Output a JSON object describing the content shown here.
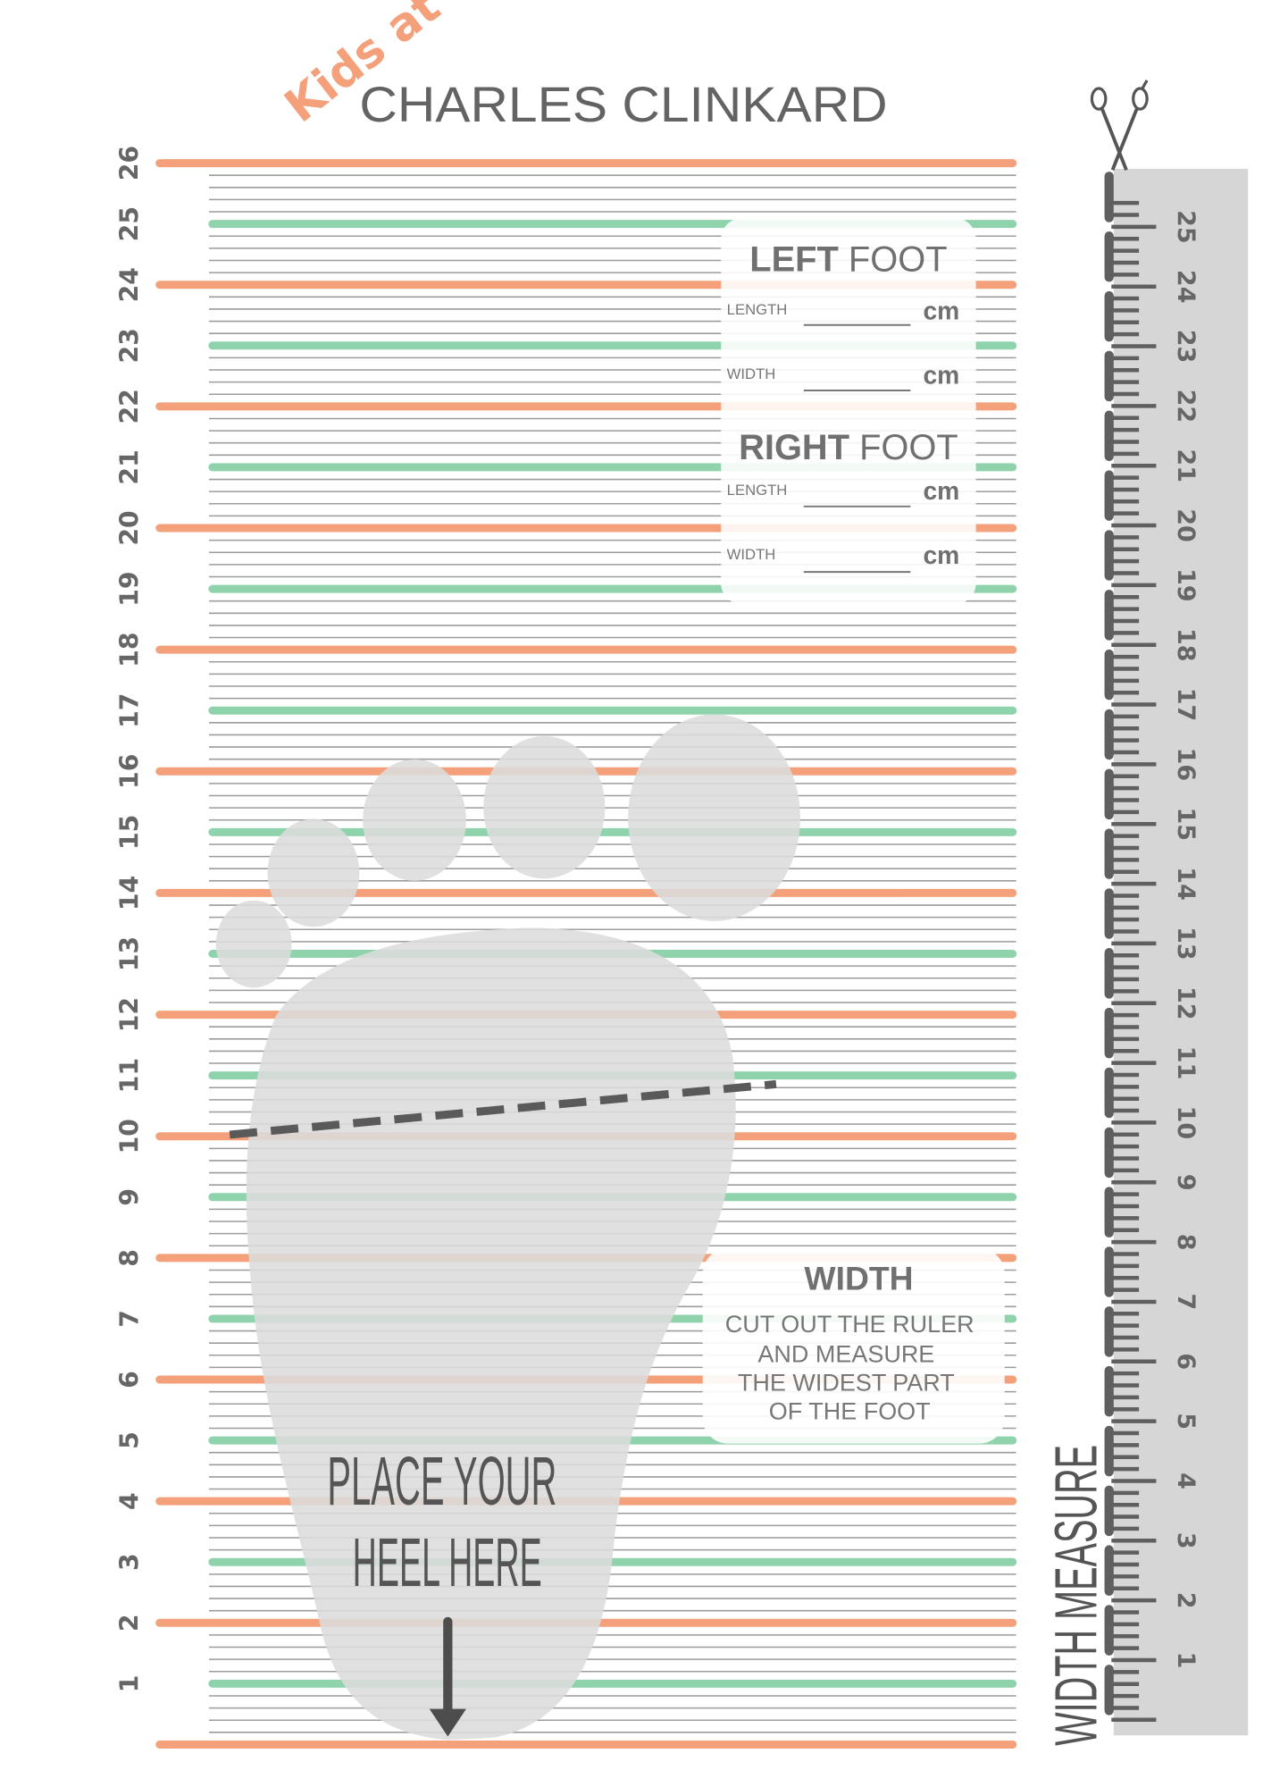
{
  "brand": {
    "kids_at": "Kids at",
    "name": "CHARLES CLINKARD"
  },
  "colors": {
    "orange": "#f4a07a",
    "green": "#8fd3ad",
    "gray_line": "#9c9c9c",
    "text": "#666666",
    "foot": "#dcdcdc",
    "ruler_bg": "#d6d6d6"
  },
  "length_scale": {
    "unit": "cm",
    "labels": [
      "1",
      "2",
      "3",
      "4",
      "5",
      "6",
      "7",
      "8",
      "9",
      "10",
      "11",
      "12",
      "13",
      "14",
      "15",
      "16",
      "17",
      "18",
      "19",
      "20",
      "21",
      "22",
      "23",
      "24",
      "25",
      "26"
    ]
  },
  "record_card": {
    "left_title_bold": "LEFT",
    "left_title_light": "FOOT",
    "right_title_bold": "RIGHT",
    "right_title_light": "FOOT",
    "length_label": "LENGTH",
    "width_label": "WIDTH",
    "unit": "cm",
    "left_length_value": "",
    "left_width_value": "",
    "right_length_value": "",
    "right_width_value": ""
  },
  "width_card": {
    "title": "WIDTH",
    "lines": [
      "CUT OUT THE RULER",
      "AND MEASURE",
      "THE WIDEST PART",
      "OF THE FOOT"
    ]
  },
  "heel": {
    "line1": "PLACE YOUR",
    "line2": "HEEL HERE"
  },
  "ruler": {
    "title": "WIDTH MEASURE",
    "labels": [
      "1",
      "2",
      "3",
      "4",
      "5",
      "6",
      "7",
      "8",
      "9",
      "10",
      "11",
      "12",
      "13",
      "14",
      "15",
      "16",
      "17",
      "18",
      "19",
      "20",
      "21",
      "22",
      "23",
      "24",
      "25"
    ],
    "icon": "scissors-icon"
  }
}
